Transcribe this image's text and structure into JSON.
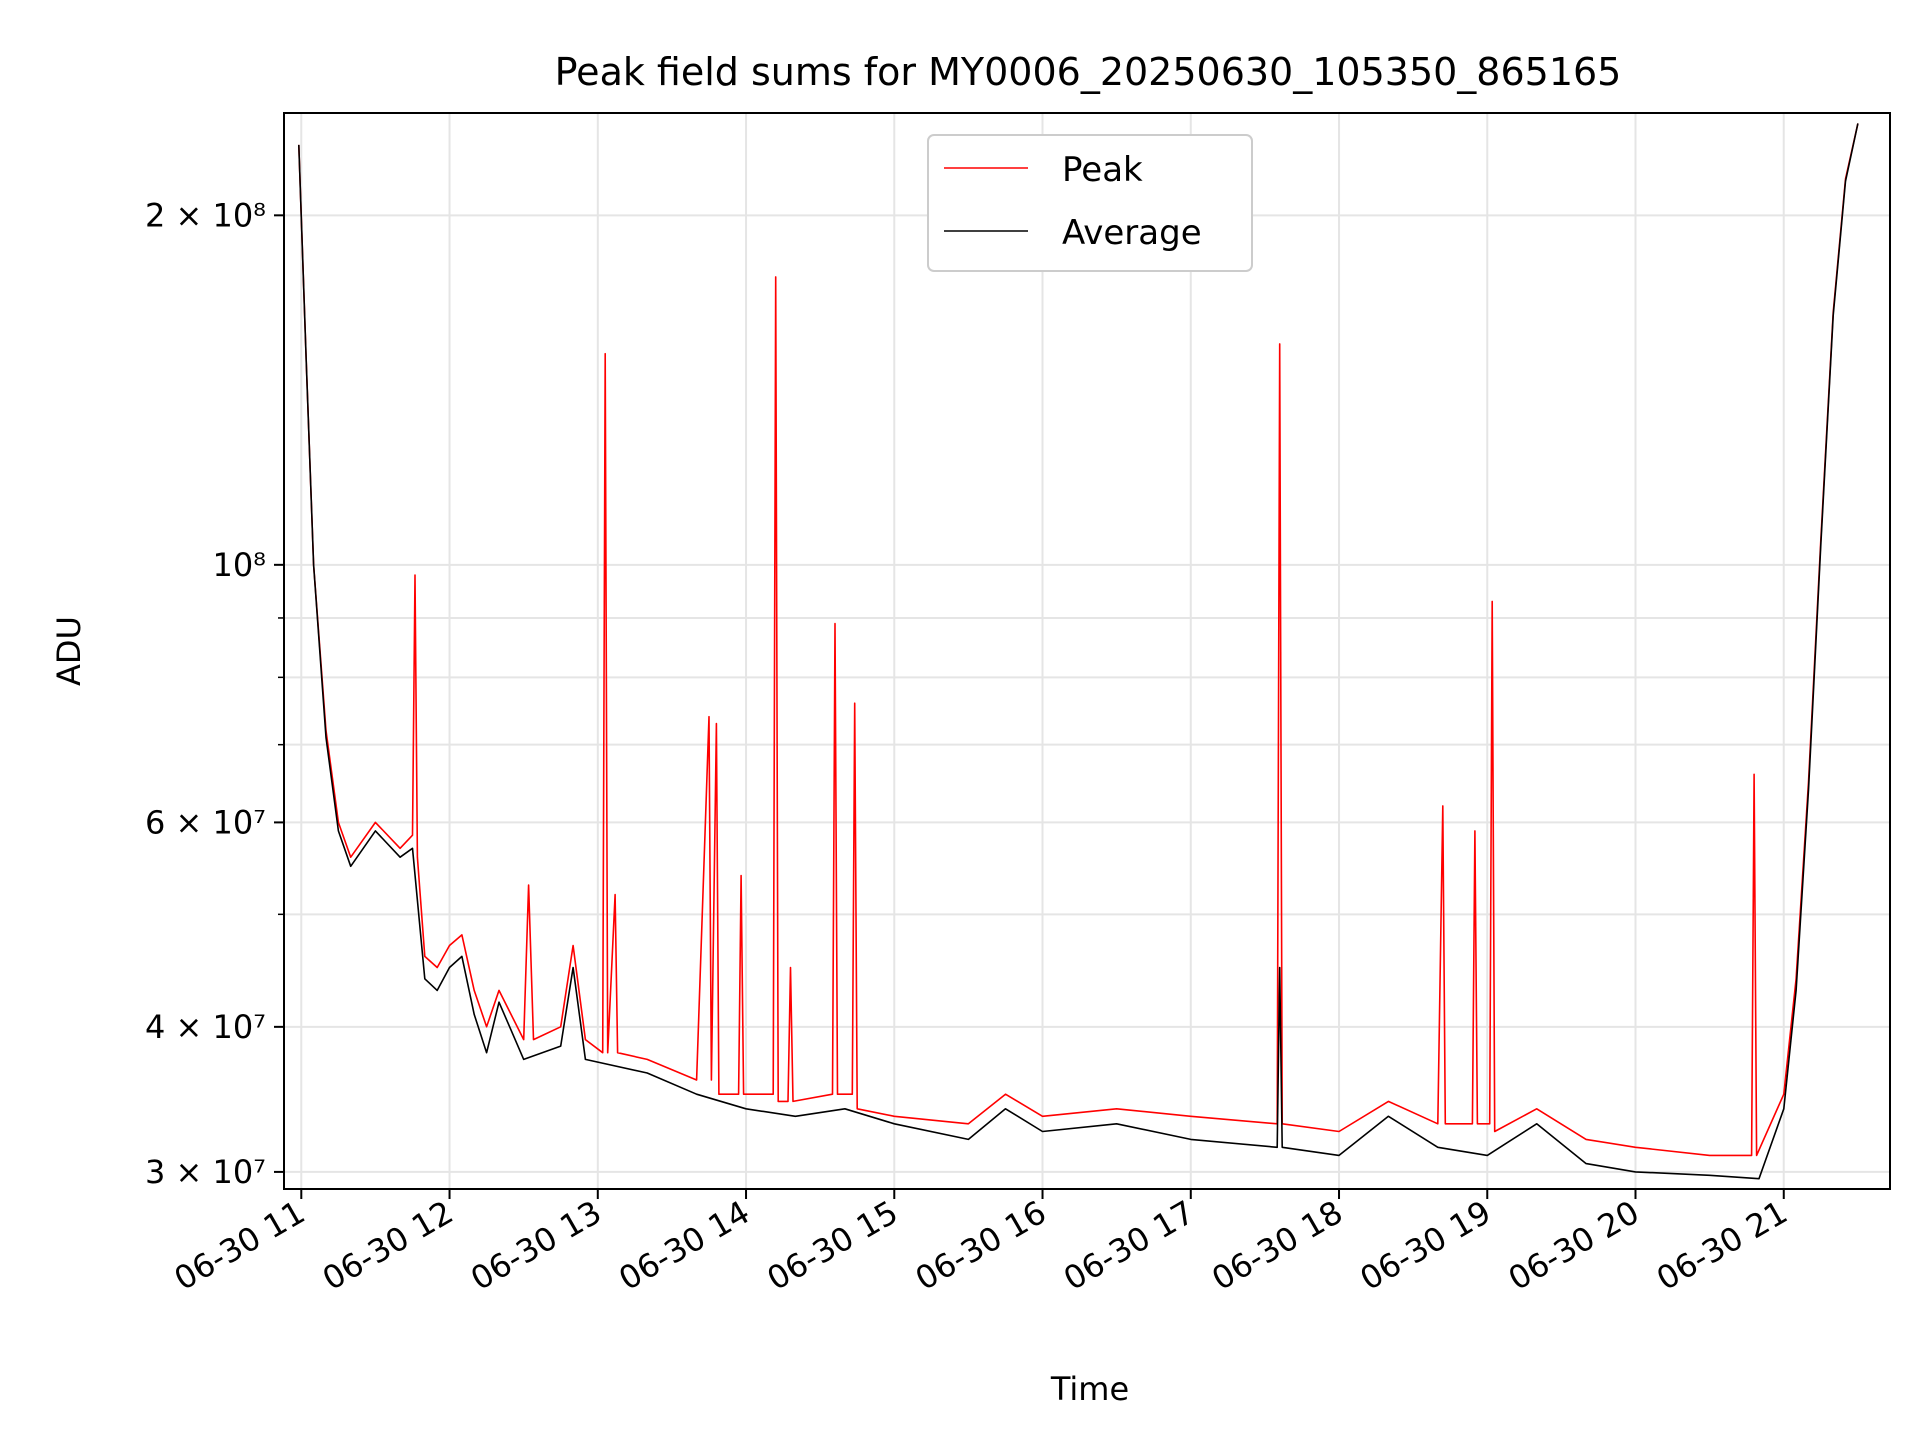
{
  "chart_data": {
    "type": "line",
    "title": "Peak field sums for MY0006_20250630_105350_865165",
    "xlabel": "Time",
    "ylabel": "ADU",
    "yscale": "log",
    "grid": true,
    "legend_position": "top-center",
    "xlim": [
      "2025-06-30 10:53",
      "2025-06-30 21:43"
    ],
    "ylim": [
      29000000,
      245000000
    ],
    "x_ticks": [
      {
        "t": "2025-06-30 11:00",
        "label": "06-30 11"
      },
      {
        "t": "2025-06-30 12:00",
        "label": "06-30 12"
      },
      {
        "t": "2025-06-30 13:00",
        "label": "06-30 13"
      },
      {
        "t": "2025-06-30 14:00",
        "label": "06-30 14"
      },
      {
        "t": "2025-06-30 15:00",
        "label": "06-30 15"
      },
      {
        "t": "2025-06-30 16:00",
        "label": "06-30 16"
      },
      {
        "t": "2025-06-30 17:00",
        "label": "06-30 17"
      },
      {
        "t": "2025-06-30 18:00",
        "label": "06-30 18"
      },
      {
        "t": "2025-06-30 19:00",
        "label": "06-30 19"
      },
      {
        "t": "2025-06-30 20:00",
        "label": "06-30 20"
      },
      {
        "t": "2025-06-30 21:00",
        "label": "06-30 21"
      }
    ],
    "y_ticks": [
      {
        "value": 30000000,
        "label": "3 × 10⁷"
      },
      {
        "value": 40000000,
        "label": "4 × 10⁷"
      },
      {
        "value": 60000000,
        "label": "6 × 10⁷"
      },
      {
        "value": 100000000,
        "label": "10⁸"
      },
      {
        "value": 200000000,
        "label": "2 × 10⁸"
      }
    ],
    "series": [
      {
        "name": "Peak",
        "color": "#ff0000",
        "points": [
          [
            "2025-06-30 10:59",
            230000000
          ],
          [
            "2025-06-30 11:02",
            150000000
          ],
          [
            "2025-06-30 11:05",
            100000000
          ],
          [
            "2025-06-30 11:10",
            72000000
          ],
          [
            "2025-06-30 11:15",
            60000000
          ],
          [
            "2025-06-30 11:20",
            56000000
          ],
          [
            "2025-06-30 11:30",
            60000000
          ],
          [
            "2025-06-30 11:40",
            57000000
          ],
          [
            "2025-06-30 11:45",
            58500000
          ],
          [
            "2025-06-30 11:46",
            98000000
          ],
          [
            "2025-06-30 11:47",
            56000000
          ],
          [
            "2025-06-30 11:50",
            46000000
          ],
          [
            "2025-06-30 11:55",
            45000000
          ],
          [
            "2025-06-30 12:00",
            47000000
          ],
          [
            "2025-06-30 12:05",
            48000000
          ],
          [
            "2025-06-30 12:10",
            43000000
          ],
          [
            "2025-06-30 12:15",
            40000000
          ],
          [
            "2025-06-30 12:20",
            43000000
          ],
          [
            "2025-06-30 12:30",
            39000000
          ],
          [
            "2025-06-30 12:32",
            53000000
          ],
          [
            "2025-06-30 12:34",
            39000000
          ],
          [
            "2025-06-30 12:45",
            40000000
          ],
          [
            "2025-06-30 12:50",
            47000000
          ],
          [
            "2025-06-30 12:55",
            39000000
          ],
          [
            "2025-06-30 13:02",
            38000000
          ],
          [
            "2025-06-30 13:03",
            152000000
          ],
          [
            "2025-06-30 13:04",
            38000000
          ],
          [
            "2025-06-30 13:07",
            52000000
          ],
          [
            "2025-06-30 13:08",
            38000000
          ],
          [
            "2025-06-30 13:20",
            37500000
          ],
          [
            "2025-06-30 13:40",
            36000000
          ],
          [
            "2025-06-30 13:45",
            74000000
          ],
          [
            "2025-06-30 13:46",
            36000000
          ],
          [
            "2025-06-30 13:48",
            73000000
          ],
          [
            "2025-06-30 13:49",
            35000000
          ],
          [
            "2025-06-30 13:57",
            35000000
          ],
          [
            "2025-06-30 13:58",
            54000000
          ],
          [
            "2025-06-30 13:59",
            35000000
          ],
          [
            "2025-06-30 14:11",
            35000000
          ],
          [
            "2025-06-30 14:12",
            177000000
          ],
          [
            "2025-06-30 14:13",
            34500000
          ],
          [
            "2025-06-30 14:17",
            34500000
          ],
          [
            "2025-06-30 14:18",
            45000000
          ],
          [
            "2025-06-30 14:19",
            34500000
          ],
          [
            "2025-06-30 14:35",
            35000000
          ],
          [
            "2025-06-30 14:36",
            89000000
          ],
          [
            "2025-06-30 14:37",
            35000000
          ],
          [
            "2025-06-30 14:43",
            35000000
          ],
          [
            "2025-06-30 14:44",
            76000000
          ],
          [
            "2025-06-30 14:45",
            34000000
          ],
          [
            "2025-06-30 15:00",
            33500000
          ],
          [
            "2025-06-30 15:30",
            33000000
          ],
          [
            "2025-06-30 15:45",
            35000000
          ],
          [
            "2025-06-30 16:00",
            33500000
          ],
          [
            "2025-06-30 16:30",
            34000000
          ],
          [
            "2025-06-30 17:00",
            33500000
          ],
          [
            "2025-06-30 17:35",
            33000000
          ],
          [
            "2025-06-30 17:36",
            155000000
          ],
          [
            "2025-06-30 17:37",
            33000000
          ],
          [
            "2025-06-30 18:00",
            32500000
          ],
          [
            "2025-06-30 18:20",
            34500000
          ],
          [
            "2025-06-30 18:40",
            33000000
          ],
          [
            "2025-06-30 18:42",
            62000000
          ],
          [
            "2025-06-30 18:43",
            33000000
          ],
          [
            "2025-06-30 18:54",
            33000000
          ],
          [
            "2025-06-30 18:55",
            59000000
          ],
          [
            "2025-06-30 18:56",
            33000000
          ],
          [
            "2025-06-30 19:01",
            33000000
          ],
          [
            "2025-06-30 19:02",
            93000000
          ],
          [
            "2025-06-30 19:03",
            32500000
          ],
          [
            "2025-06-30 19:20",
            34000000
          ],
          [
            "2025-06-30 19:40",
            32000000
          ],
          [
            "2025-06-30 20:00",
            31500000
          ],
          [
            "2025-06-30 20:30",
            31000000
          ],
          [
            "2025-06-30 20:47",
            31000000
          ],
          [
            "2025-06-30 20:48",
            66000000
          ],
          [
            "2025-06-30 20:49",
            31000000
          ],
          [
            "2025-06-30 21:00",
            35000000
          ],
          [
            "2025-06-30 21:05",
            44000000
          ],
          [
            "2025-06-30 21:10",
            65000000
          ],
          [
            "2025-06-30 21:15",
            105000000
          ],
          [
            "2025-06-30 21:20",
            165000000
          ],
          [
            "2025-06-30 21:25",
            215000000
          ],
          [
            "2025-06-30 21:30",
            240000000
          ]
        ]
      },
      {
        "name": "Average",
        "color": "#000000",
        "points": [
          [
            "2025-06-30 10:59",
            230000000
          ],
          [
            "2025-06-30 11:02",
            150000000
          ],
          [
            "2025-06-30 11:05",
            100000000
          ],
          [
            "2025-06-30 11:10",
            71000000
          ],
          [
            "2025-06-30 11:15",
            59000000
          ],
          [
            "2025-06-30 11:20",
            55000000
          ],
          [
            "2025-06-30 11:30",
            59000000
          ],
          [
            "2025-06-30 11:40",
            56000000
          ],
          [
            "2025-06-30 11:45",
            57000000
          ],
          [
            "2025-06-30 11:50",
            44000000
          ],
          [
            "2025-06-30 11:55",
            43000000
          ],
          [
            "2025-06-30 12:00",
            45000000
          ],
          [
            "2025-06-30 12:05",
            46000000
          ],
          [
            "2025-06-30 12:10",
            41000000
          ],
          [
            "2025-06-30 12:15",
            38000000
          ],
          [
            "2025-06-30 12:20",
            42000000
          ],
          [
            "2025-06-30 12:30",
            37500000
          ],
          [
            "2025-06-30 12:45",
            38500000
          ],
          [
            "2025-06-30 12:50",
            45000000
          ],
          [
            "2025-06-30 12:55",
            37500000
          ],
          [
            "2025-06-30 13:20",
            36500000
          ],
          [
            "2025-06-30 13:40",
            35000000
          ],
          [
            "2025-06-30 14:00",
            34000000
          ],
          [
            "2025-06-30 14:20",
            33500000
          ],
          [
            "2025-06-30 14:40",
            34000000
          ],
          [
            "2025-06-30 15:00",
            33000000
          ],
          [
            "2025-06-30 15:30",
            32000000
          ],
          [
            "2025-06-30 15:45",
            34000000
          ],
          [
            "2025-06-30 16:00",
            32500000
          ],
          [
            "2025-06-30 16:30",
            33000000
          ],
          [
            "2025-06-30 17:00",
            32000000
          ],
          [
            "2025-06-30 17:35",
            31500000
          ],
          [
            "2025-06-30 17:36",
            45000000
          ],
          [
            "2025-06-30 17:37",
            31500000
          ],
          [
            "2025-06-30 18:00",
            31000000
          ],
          [
            "2025-06-30 18:20",
            33500000
          ],
          [
            "2025-06-30 18:40",
            31500000
          ],
          [
            "2025-06-30 19:00",
            31000000
          ],
          [
            "2025-06-30 19:20",
            33000000
          ],
          [
            "2025-06-30 19:40",
            30500000
          ],
          [
            "2025-06-30 20:00",
            30000000
          ],
          [
            "2025-06-30 20:30",
            29800000
          ],
          [
            "2025-06-30 20:50",
            29600000
          ],
          [
            "2025-06-30 21:00",
            34000000
          ],
          [
            "2025-06-30 21:05",
            43000000
          ],
          [
            "2025-06-30 21:10",
            64000000
          ],
          [
            "2025-06-30 21:15",
            104000000
          ],
          [
            "2025-06-30 21:20",
            164000000
          ],
          [
            "2025-06-30 21:25",
            214000000
          ],
          [
            "2025-06-30 21:30",
            240000000
          ]
        ]
      }
    ]
  }
}
